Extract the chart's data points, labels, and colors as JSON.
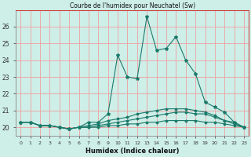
{
  "title": "Courbe de l'humidex pour Neuchatel (Sw)",
  "xlabel": "Humidex (Indice chaleur)",
  "bg_color": "#ceeee8",
  "grid_color": "#f0a0a0",
  "line_color": "#1a7a6a",
  "xlim": [
    -0.5,
    23.5
  ],
  "ylim": [
    19.5,
    27.0
  ],
  "yticks": [
    20,
    21,
    22,
    23,
    24,
    25,
    26
  ],
  "xtick_labels": [
    "0",
    "1",
    "2",
    "3",
    "4",
    "5",
    "6",
    "7",
    "8",
    "9",
    "10",
    "11",
    "12",
    "13",
    "14",
    "15",
    "16",
    "17",
    "18",
    "19",
    "20",
    "21",
    "22",
    "23"
  ],
  "series1_x": [
    0,
    1,
    2,
    3,
    4,
    5,
    6,
    7,
    8,
    9,
    10,
    11,
    12,
    13,
    14,
    15,
    16,
    17,
    18,
    19,
    20,
    21,
    22,
    23
  ],
  "series1_y": [
    20.3,
    20.3,
    20.1,
    20.1,
    20.0,
    19.9,
    20.0,
    20.3,
    20.3,
    20.8,
    24.3,
    23.0,
    22.9,
    26.6,
    24.6,
    24.7,
    25.4,
    24.0,
    23.2,
    21.5,
    21.2,
    20.9,
    20.3,
    20.0
  ],
  "series2_x": [
    0,
    1,
    2,
    3,
    4,
    5,
    6,
    7,
    8,
    9,
    10,
    11,
    12,
    13,
    14,
    15,
    16,
    17,
    18,
    19,
    20,
    21,
    22,
    23
  ],
  "series2_y": [
    20.3,
    20.3,
    20.1,
    20.1,
    20.0,
    19.9,
    20.0,
    20.1,
    20.2,
    20.4,
    20.5,
    20.6,
    20.8,
    20.9,
    21.0,
    21.1,
    21.1,
    21.1,
    21.0,
    20.9,
    20.7,
    20.4,
    20.3,
    20.0
  ],
  "series3_x": [
    0,
    1,
    2,
    3,
    4,
    5,
    6,
    7,
    8,
    9,
    10,
    11,
    12,
    13,
    14,
    15,
    16,
    17,
    18,
    19,
    20,
    21,
    22,
    23
  ],
  "series3_y": [
    20.3,
    20.3,
    20.1,
    20.1,
    20.0,
    19.9,
    20.0,
    20.0,
    20.1,
    20.2,
    20.3,
    20.4,
    20.5,
    20.6,
    20.7,
    20.8,
    20.9,
    20.9,
    20.8,
    20.8,
    20.6,
    20.4,
    20.2,
    20.0
  ],
  "series4_x": [
    0,
    1,
    2,
    3,
    4,
    5,
    6,
    7,
    8,
    9,
    10,
    11,
    12,
    13,
    14,
    15,
    16,
    17,
    18,
    19,
    20,
    21,
    22,
    23
  ],
  "series4_y": [
    20.3,
    20.3,
    20.1,
    20.1,
    20.0,
    19.9,
    20.0,
    20.0,
    20.0,
    20.1,
    20.1,
    20.2,
    20.2,
    20.3,
    20.3,
    20.4,
    20.4,
    20.4,
    20.4,
    20.3,
    20.3,
    20.2,
    20.1,
    20.0
  ]
}
